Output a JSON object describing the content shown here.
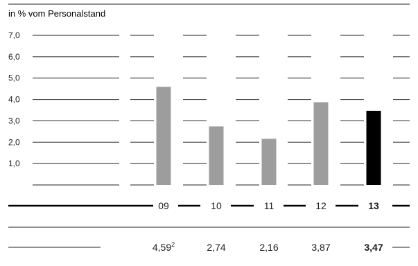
{
  "chart_data": {
    "type": "bar",
    "title": "",
    "subtitle": "in % vom Personalstand",
    "xlabel": "",
    "ylabel": "",
    "ylim": [
      0,
      7
    ],
    "y_ticks": [
      "7,0",
      "6,0",
      "5,0",
      "4,0",
      "3,0",
      "2,0",
      "1,0"
    ],
    "y_tick_values": [
      7,
      6,
      5,
      4,
      3,
      2,
      1
    ],
    "grid": true,
    "categories": [
      "09",
      "10",
      "11",
      "12",
      "13"
    ],
    "values": [
      4.59,
      2.74,
      2.16,
      3.87,
      3.47
    ],
    "value_labels": [
      "4,59",
      "2,74",
      "2,16",
      "3,87",
      "3,47"
    ],
    "footnotes": [
      "2",
      "",
      "",
      "",
      ""
    ],
    "highlight_index": 4,
    "colors": {
      "bar": "#9d9d9d",
      "highlight": "#000000",
      "grid": "#222222",
      "text": "#1a1a1a"
    }
  }
}
